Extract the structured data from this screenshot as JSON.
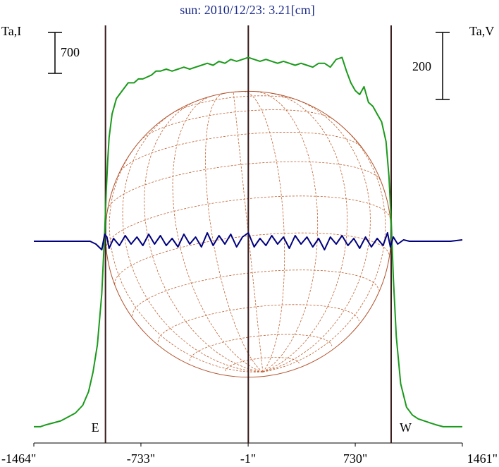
{
  "chart_data": {
    "type": "line",
    "title": "sun: 2010/12/23: 3.21[cm]",
    "y_left_label": "Ta,I",
    "y_right_label": "Ta,V",
    "scale_bar_left": "700",
    "scale_bar_right": "200",
    "x_ticks": [
      {
        "value": -1464,
        "label": "-1464\""
      },
      {
        "value": -733,
        "label": "-733\""
      },
      {
        "value": -1,
        "label": "-1\""
      },
      {
        "value": 730,
        "label": "730\""
      },
      {
        "value": 1461,
        "label": "1461\""
      }
    ],
    "xlim": [
      -1464,
      1461
    ],
    "limb_markers": [
      {
        "x": -975,
        "label": "E"
      },
      {
        "x": 975,
        "label": "W"
      }
    ],
    "center_marker_x": 0,
    "solar_disk": {
      "radius_arcsec": 975,
      "grid": "heliographic"
    },
    "series": [
      {
        "color": "#1a9a1a",
        "x": [
          -1464,
          -1420,
          -1380,
          -1330,
          -1280,
          -1230,
          -1180,
          -1130,
          -1090,
          -1060,
          -1030,
          -1000,
          -980,
          -970,
          -960,
          -950,
          -930,
          -900,
          -860,
          -820,
          -780,
          -750,
          -720,
          -690,
          -660,
          -630,
          -600,
          -560,
          -520,
          -480,
          -440,
          -400,
          -360,
          -320,
          -280,
          -240,
          -200,
          -160,
          -120,
          -80,
          -40,
          0,
          40,
          80,
          120,
          160,
          200,
          240,
          280,
          320,
          360,
          400,
          440,
          480,
          520,
          560,
          600,
          640,
          670,
          700,
          730,
          760,
          790,
          820,
          850,
          880,
          910,
          940,
          960,
          975,
          990,
          1010,
          1040,
          1080,
          1120,
          1160,
          1200,
          1240,
          1280,
          1330,
          1380,
          1420,
          1461
        ],
        "y": [
          0.02,
          0.02,
          0.025,
          0.03,
          0.035,
          0.045,
          0.055,
          0.075,
          0.11,
          0.16,
          0.23,
          0.36,
          0.52,
          0.62,
          0.7,
          0.76,
          0.82,
          0.86,
          0.88,
          0.9,
          0.9,
          0.91,
          0.91,
          0.915,
          0.92,
          0.93,
          0.93,
          0.935,
          0.93,
          0.935,
          0.94,
          0.935,
          0.94,
          0.945,
          0.95,
          0.945,
          0.955,
          0.95,
          0.96,
          0.955,
          0.96,
          0.965,
          0.96,
          0.955,
          0.96,
          0.955,
          0.95,
          0.955,
          0.95,
          0.945,
          0.95,
          0.945,
          0.94,
          0.95,
          0.95,
          0.94,
          0.96,
          0.965,
          0.93,
          0.9,
          0.88,
          0.87,
          0.89,
          0.85,
          0.84,
          0.82,
          0.8,
          0.75,
          0.66,
          0.55,
          0.4,
          0.25,
          0.13,
          0.07,
          0.05,
          0.04,
          0.035,
          0.03,
          0.025,
          0.02,
          0.02,
          0.02,
          0.02
        ]
      },
      {
        "color": "#000080",
        "x": [
          -1464,
          -1350,
          -1250,
          -1180,
          -1130,
          -1080,
          -1040,
          -1000,
          -980,
          -965,
          -950,
          -920,
          -880,
          -840,
          -800,
          -760,
          -720,
          -680,
          -640,
          -600,
          -560,
          -520,
          -480,
          -440,
          -400,
          -360,
          -320,
          -280,
          -240,
          -200,
          -160,
          -120,
          -80,
          -40,
          0,
          40,
          80,
          120,
          160,
          200,
          240,
          280,
          320,
          360,
          400,
          440,
          480,
          520,
          560,
          600,
          640,
          680,
          720,
          760,
          800,
          840,
          880,
          920,
          950,
          970,
          990,
          1020,
          1060,
          1100,
          1150,
          1200,
          1260,
          1320,
          1380,
          1461
        ],
        "y": [
          0,
          0,
          0,
          0,
          0,
          0,
          -0.004,
          -0.012,
          0.01,
          0.006,
          -0.01,
          0.004,
          -0.006,
          0.008,
          -0.004,
          0.006,
          -0.006,
          0.01,
          -0.004,
          0.008,
          -0.006,
          0.004,
          -0.008,
          0.01,
          -0.004,
          0.006,
          -0.008,
          0.012,
          -0.006,
          0.008,
          -0.004,
          0.01,
          -0.008,
          0.006,
          0.012,
          -0.008,
          0.004,
          -0.006,
          0.008,
          -0.004,
          0.006,
          -0.01,
          0.008,
          -0.004,
          0.006,
          -0.008,
          0.004,
          -0.012,
          0.006,
          -0.004,
          0.008,
          -0.006,
          0.004,
          -0.01,
          0.006,
          -0.008,
          0.004,
          -0.006,
          0.012,
          -0.008,
          0.006,
          -0.004,
          0.002,
          0,
          0,
          0,
          0,
          0,
          0,
          0.002
        ]
      }
    ]
  }
}
